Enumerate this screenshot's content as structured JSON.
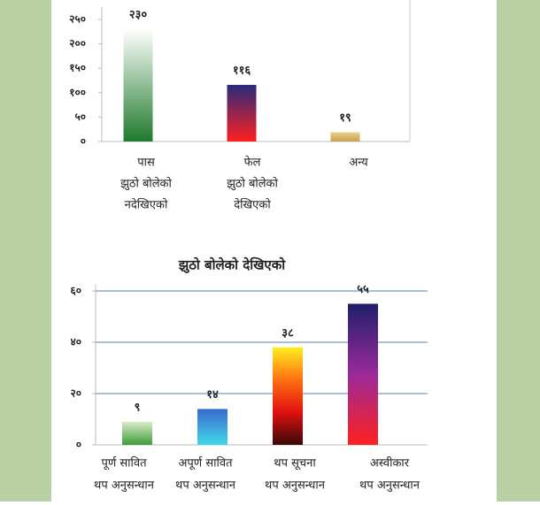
{
  "chart_data": [
    {
      "type": "bar",
      "categories": [
        [
          "पास",
          "झुठो बोलेको",
          "नदेखिएको"
        ],
        [
          "फेल",
          "झुठो बोलेको",
          "देखिएको"
        ],
        [
          "अन्य"
        ]
      ],
      "values": [
        230,
        116,
        19
      ],
      "value_labels": [
        "२३०",
        "११६",
        "१९"
      ],
      "colors": [
        [
          "#ffffff",
          "#1f7a2c"
        ],
        [
          "#2a2a7a",
          "#ff2020"
        ],
        [
          "#e8d08a",
          "#c8a050"
        ]
      ],
      "ylim": [
        0,
        250
      ],
      "yticks": [
        {
          "value": 0,
          "label": "०"
        },
        {
          "value": 50,
          "label": "५०"
        },
        {
          "value": 100,
          "label": "१००"
        },
        {
          "value": 150,
          "label": "१५०"
        },
        {
          "value": 200,
          "label": "२००"
        },
        {
          "value": 250,
          "label": "२५०"
        }
      ],
      "grid": false
    },
    {
      "type": "bar",
      "title": "झुठो बोलेको देखिएको",
      "categories": [
        [
          "पूर्ण सावित",
          "थप अनुसन्धान"
        ],
        [
          "अपूर्ण सावित",
          "थप अनुसन्धान"
        ],
        [
          "थप सूचना",
          "थप अनुसन्धान"
        ],
        [
          "अस्वीकार",
          "थप अनुसन्धान"
        ]
      ],
      "values": [
        9,
        14,
        38,
        55
      ],
      "value_labels": [
        "९",
        "१४",
        "३८",
        "५५"
      ],
      "colors": [
        [
          "#d8ecc8",
          "#3f9a3a"
        ],
        [
          "#3a6ad0",
          "#40d8e8"
        ],
        [
          "#ffee20",
          "#ff7010",
          "#e01010",
          "#3a0808"
        ],
        [
          "#20206a",
          "#9a2a9a",
          "#ff2020"
        ]
      ],
      "ylim": [
        0,
        60
      ],
      "yticks": [
        {
          "value": 0,
          "label": "०"
        },
        {
          "value": 20,
          "label": "२०"
        },
        {
          "value": 40,
          "label": "४०"
        },
        {
          "value": 60,
          "label": "६०"
        }
      ],
      "grid": true
    }
  ]
}
